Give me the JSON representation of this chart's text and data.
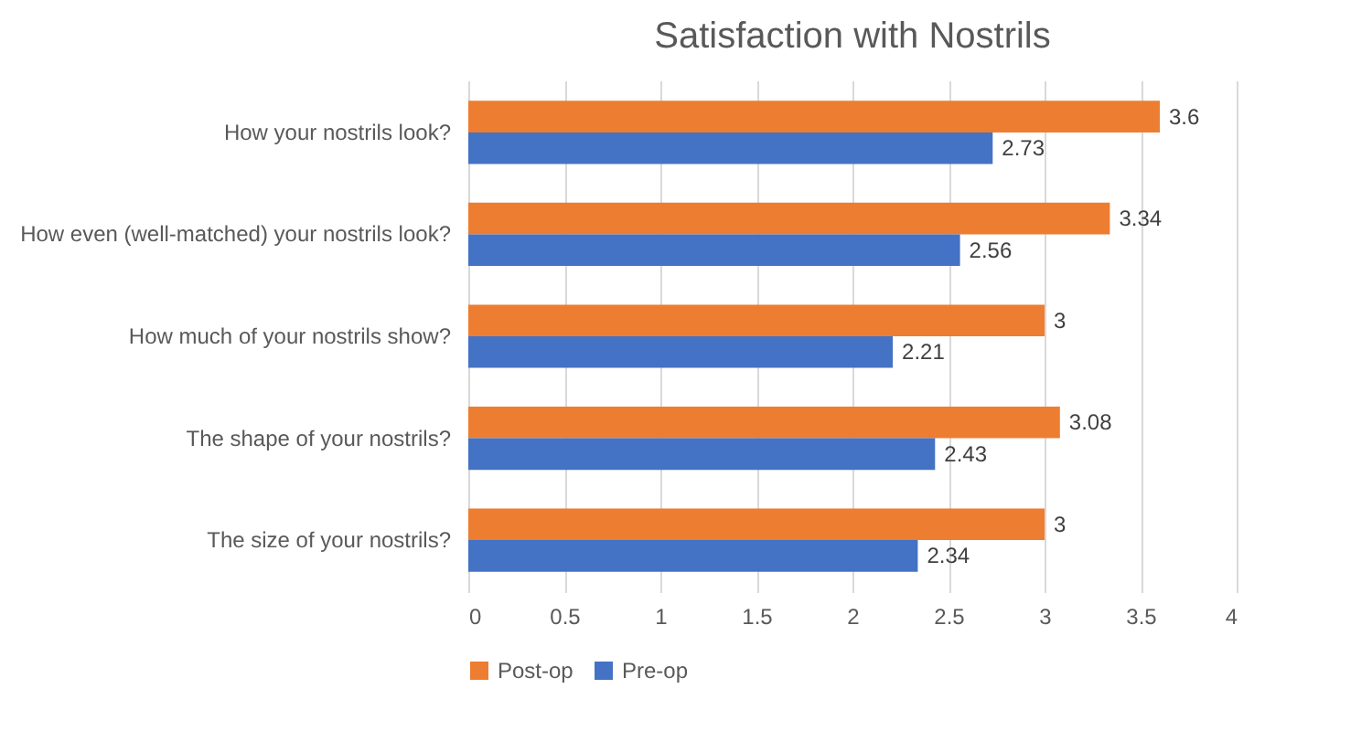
{
  "chart_data": {
    "type": "bar",
    "orientation": "horizontal",
    "title": "Satisfaction with Nostrils",
    "categories": [
      "How your nostrils look?",
      "How even (well-matched) your nostrils look?",
      "How much of your nostrils show?",
      "The shape of your nostrils?",
      "The size of your nostrils?"
    ],
    "series": [
      {
        "name": "Post-op",
        "color": "#ed7d31",
        "values": [
          3.6,
          3.34,
          3,
          3.08,
          3
        ]
      },
      {
        "name": "Pre-op",
        "color": "#4472c4",
        "values": [
          2.73,
          2.56,
          2.21,
          2.43,
          2.34
        ]
      }
    ],
    "xlim": [
      0,
      4
    ],
    "xticks": [
      0,
      0.5,
      1,
      1.5,
      2,
      2.5,
      3,
      3.5,
      4
    ],
    "grid": "x",
    "legend": "bottom",
    "data_labels": true
  }
}
